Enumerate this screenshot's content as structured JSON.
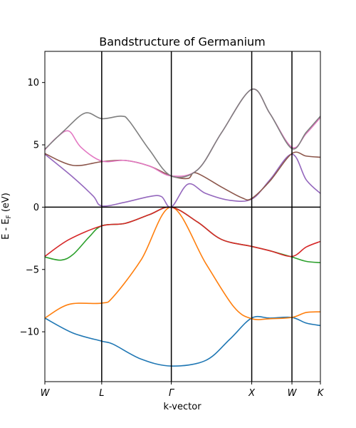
{
  "chart_data": {
    "type": "line",
    "title": "Bandstructure of Germanium",
    "xlabel": "k-vector",
    "ylabel": "E - E",
    "ylabel_subscript": "F",
    "ylabel_unit": " (eV)",
    "ylim": [
      -14,
      12.5
    ],
    "yticks": [
      -10,
      -5,
      0,
      5,
      10
    ],
    "ytick_labels": [
      "−10",
      "−5",
      "0",
      "5",
      "10"
    ],
    "grid": false,
    "legend": "none",
    "k_points": [
      {
        "label": "W",
        "x": 0.0
      },
      {
        "label": "L",
        "x": 0.707
      },
      {
        "label": "Γ",
        "x": 1.573
      },
      {
        "label": "X",
        "x": 2.573
      },
      {
        "label": "W",
        "x": 3.073
      },
      {
        "label": "K",
        "x": 3.427
      }
    ],
    "fermi_level": 0,
    "series": [
      {
        "color": "#1f77b4",
        "points": [
          [
            0,
            -8.9
          ],
          [
            0.35,
            -10.1
          ],
          [
            0.707,
            -10.75
          ],
          [
            0.85,
            -11.0
          ],
          [
            1.2,
            -12.2
          ],
          [
            1.573,
            -12.75
          ],
          [
            2.0,
            -12.3
          ],
          [
            2.3,
            -10.6
          ],
          [
            2.573,
            -8.9
          ],
          [
            2.8,
            -8.9
          ],
          [
            3.073,
            -8.85
          ],
          [
            3.25,
            -9.3
          ],
          [
            3.427,
            -9.5
          ]
        ]
      },
      {
        "color": "#ff7f0e",
        "points": [
          [
            0,
            -8.9
          ],
          [
            0.3,
            -7.8
          ],
          [
            0.707,
            -7.7
          ],
          [
            0.85,
            -7.2
          ],
          [
            1.2,
            -4.2
          ],
          [
            1.573,
            0.0
          ],
          [
            2.0,
            -4.5
          ],
          [
            2.35,
            -8.0
          ],
          [
            2.573,
            -8.95
          ],
          [
            2.8,
            -8.95
          ],
          [
            3.073,
            -8.85
          ],
          [
            3.25,
            -8.45
          ],
          [
            3.427,
            -8.4
          ]
        ]
      },
      {
        "color": "#2ca02c",
        "points": [
          [
            0,
            -4.0
          ],
          [
            0.2,
            -4.25
          ],
          [
            0.35,
            -3.8
          ],
          [
            0.55,
            -2.4
          ],
          [
            0.707,
            -1.5
          ],
          [
            1.0,
            -1.3
          ],
          [
            1.3,
            -0.6
          ],
          [
            1.573,
            0.0
          ],
          [
            1.9,
            -1.2
          ],
          [
            2.2,
            -2.6
          ],
          [
            2.573,
            -3.15
          ],
          [
            2.8,
            -3.5
          ],
          [
            3.073,
            -4.0
          ],
          [
            3.25,
            -4.35
          ],
          [
            3.427,
            -4.45
          ]
        ]
      },
      {
        "color": "#d62728",
        "points": [
          [
            0,
            -3.95
          ],
          [
            0.3,
            -2.6
          ],
          [
            0.707,
            -1.5
          ],
          [
            1.0,
            -1.3
          ],
          [
            1.3,
            -0.6
          ],
          [
            1.573,
            0.0
          ],
          [
            1.9,
            -1.2
          ],
          [
            2.2,
            -2.6
          ],
          [
            2.573,
            -3.15
          ],
          [
            2.8,
            -3.5
          ],
          [
            3.073,
            -3.95
          ],
          [
            3.25,
            -3.2
          ],
          [
            3.427,
            -2.75
          ]
        ]
      },
      {
        "color": "#9467bd",
        "points": [
          [
            0,
            4.25
          ],
          [
            0.35,
            2.4
          ],
          [
            0.6,
            0.9
          ],
          [
            0.707,
            0.1
          ],
          [
            1.0,
            0.4
          ],
          [
            1.3,
            0.85
          ],
          [
            1.45,
            0.85
          ],
          [
            1.573,
            0.0
          ],
          [
            1.78,
            1.85
          ],
          [
            2.0,
            1.1
          ],
          [
            2.3,
            0.55
          ],
          [
            2.573,
            0.65
          ],
          [
            2.8,
            2.2
          ],
          [
            3.073,
            4.25
          ],
          [
            3.25,
            2.2
          ],
          [
            3.427,
            1.1
          ]
        ]
      },
      {
        "color": "#8c564b",
        "points": [
          [
            0,
            4.3
          ],
          [
            0.35,
            3.35
          ],
          [
            0.707,
            3.65
          ],
          [
            1.0,
            3.75
          ],
          [
            1.3,
            3.3
          ],
          [
            1.573,
            2.5
          ],
          [
            1.78,
            2.3
          ],
          [
            1.88,
            2.75
          ],
          [
            2.2,
            1.6
          ],
          [
            2.45,
            0.75
          ],
          [
            2.573,
            0.7
          ],
          [
            2.8,
            2.1
          ],
          [
            3.073,
            4.3
          ],
          [
            3.25,
            4.1
          ],
          [
            3.427,
            4.0
          ]
        ]
      },
      {
        "color": "#e377c2",
        "points": [
          [
            0,
            4.6
          ],
          [
            0.15,
            5.6
          ],
          [
            0.3,
            6.1
          ],
          [
            0.45,
            4.8
          ],
          [
            0.707,
            3.7
          ],
          [
            1.0,
            3.75
          ],
          [
            1.3,
            3.3
          ],
          [
            1.573,
            2.5
          ],
          [
            1.9,
            3.0
          ],
          [
            2.2,
            6.0
          ],
          [
            2.573,
            9.45
          ],
          [
            2.8,
            7.5
          ],
          [
            3.073,
            4.8
          ],
          [
            3.25,
            5.9
          ],
          [
            3.427,
            7.2
          ]
        ]
      },
      {
        "color": "#7f7f7f",
        "points": [
          [
            0,
            4.65
          ],
          [
            0.25,
            6.2
          ],
          [
            0.5,
            7.55
          ],
          [
            0.707,
            7.1
          ],
          [
            0.95,
            7.3
          ],
          [
            1.05,
            6.9
          ],
          [
            1.3,
            4.6
          ],
          [
            1.573,
            2.5
          ],
          [
            1.9,
            3.0
          ],
          [
            2.2,
            6.0
          ],
          [
            2.573,
            9.45
          ],
          [
            2.8,
            7.5
          ],
          [
            3.073,
            4.7
          ],
          [
            3.25,
            6.0
          ],
          [
            3.427,
            7.3
          ]
        ]
      }
    ]
  }
}
